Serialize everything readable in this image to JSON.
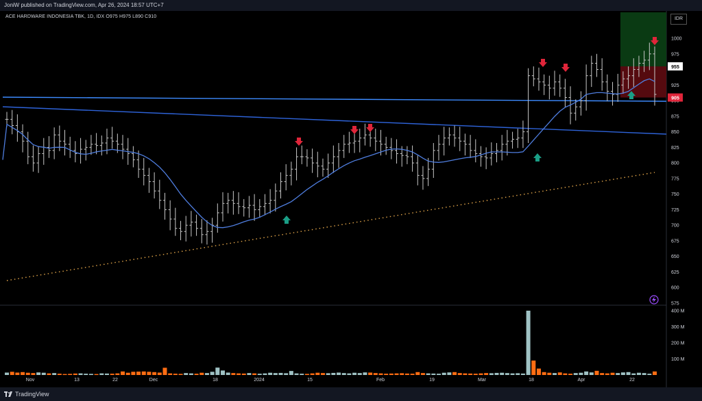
{
  "header": {
    "publish_line": "JoniW published on TradingView.com, Apr 26, 2024 18:57 UTC+7"
  },
  "legend": {
    "symbol": "ACE HARDWARE INDONESIA TBK, 1D, IDX",
    "o_key": "O",
    "o_val": "975",
    "h_key": "H",
    "h_val": "975",
    "l_key": "L",
    "l_val": "890",
    "c_key": "C",
    "c_val": "910"
  },
  "currency": "IDR",
  "footer": {
    "brand": "TradingView"
  },
  "colors": {
    "up_volume": "#9fc2c4",
    "down_volume": "#ff6d13",
    "ma_line": "#4f7ee0",
    "trend_line": "#2e63d9",
    "support_line": "#3d8bff",
    "dotted_line": "#e3a64a",
    "arrow_down": "#e0253a",
    "arrow_up": "#1a9e86",
    "price_bar": "#c9c9c9",
    "badge_target": "#ffffff",
    "badge_stop": "#e0253a"
  },
  "chart_data": {
    "type": "ohlc",
    "x_ticks": [
      "Nov",
      "13",
      "22",
      "Dec",
      "18",
      "2024",
      "15",
      "Feb",
      "19",
      "Mar",
      "18",
      "Apr",
      "22"
    ],
    "y_ticks": [
      1000,
      975,
      925,
      900,
      875,
      850,
      825,
      800,
      775,
      750,
      725,
      700,
      675,
      650,
      625,
      600,
      575
    ],
    "y_range": [
      575,
      1010
    ],
    "volume_ticks": [
      "400 M",
      "300 M",
      "200 M",
      "100 M"
    ],
    "volume_range": [
      0,
      400
    ],
    "price_badges": [
      {
        "label": "955",
        "value": 955,
        "kind": "target"
      },
      {
        "label": "905",
        "value": 905,
        "kind": "stop"
      }
    ],
    "closes": [
      870,
      860,
      850,
      835,
      810,
      800,
      815,
      825,
      820,
      845,
      835,
      830,
      820,
      815,
      822,
      825,
      830,
      828,
      832,
      840,
      835,
      830,
      822,
      815,
      805,
      790,
      780,
      770,
      755,
      740,
      725,
      710,
      695,
      690,
      700,
      705,
      695,
      685,
      690,
      700,
      720,
      735,
      740,
      735,
      730,
      728,
      732,
      725,
      730,
      735,
      740,
      755,
      770,
      780,
      790,
      810,
      810,
      808,
      800,
      795,
      790,
      800,
      810,
      820,
      830,
      832,
      835,
      840,
      845,
      840,
      835,
      830,
      825,
      820,
      815,
      812,
      810,
      800,
      780,
      775,
      790,
      820,
      830,
      840,
      845,
      840,
      835,
      830,
      820,
      815,
      810,
      808,
      815,
      820,
      830,
      835,
      838,
      840,
      850,
      940,
      935,
      930,
      925,
      920,
      930,
      920,
      905,
      880,
      890,
      900,
      940,
      960,
      950,
      930,
      915,
      910,
      925,
      935,
      940,
      950,
      960,
      965,
      975,
      910
    ],
    "volumes": [
      15,
      20,
      15,
      18,
      14,
      12,
      16,
      14,
      10,
      12,
      8,
      6,
      7,
      9,
      10,
      8,
      7,
      6,
      10,
      9,
      8,
      10,
      22,
      14,
      20,
      21,
      22,
      20,
      18,
      15,
      45,
      10,
      8,
      7,
      12,
      10,
      8,
      14,
      12,
      20,
      46,
      28,
      15,
      12,
      10,
      9,
      12,
      10,
      8,
      10,
      14,
      12,
      13,
      11,
      25,
      10,
      8,
      7,
      10,
      14,
      12,
      11,
      13,
      15,
      12,
      10,
      14,
      12,
      16,
      15,
      12,
      10,
      8,
      9,
      10,
      11,
      9,
      8,
      18,
      12,
      10,
      9,
      8,
      14,
      16,
      18,
      12,
      10,
      9,
      8,
      10,
      12,
      11,
      13,
      14,
      12,
      10,
      11,
      9,
      420,
      90,
      40,
      18,
      14,
      12,
      16,
      10,
      8,
      12,
      14,
      22,
      16,
      26,
      12,
      10,
      14,
      12,
      16,
      18,
      10,
      14,
      12,
      8,
      22
    ],
    "annotations": {
      "down_arrows": [
        [
          430,
          905
        ],
        [
          517,
          854
        ],
        [
          540,
          855
        ],
        [
          792,
          980
        ],
        [
          825,
          975
        ],
        [
          955,
          990
        ]
      ],
      "up_arrows": [
        [
          418,
          723
        ],
        [
          784,
          815
        ],
        [
          921,
          905
        ]
      ]
    }
  }
}
